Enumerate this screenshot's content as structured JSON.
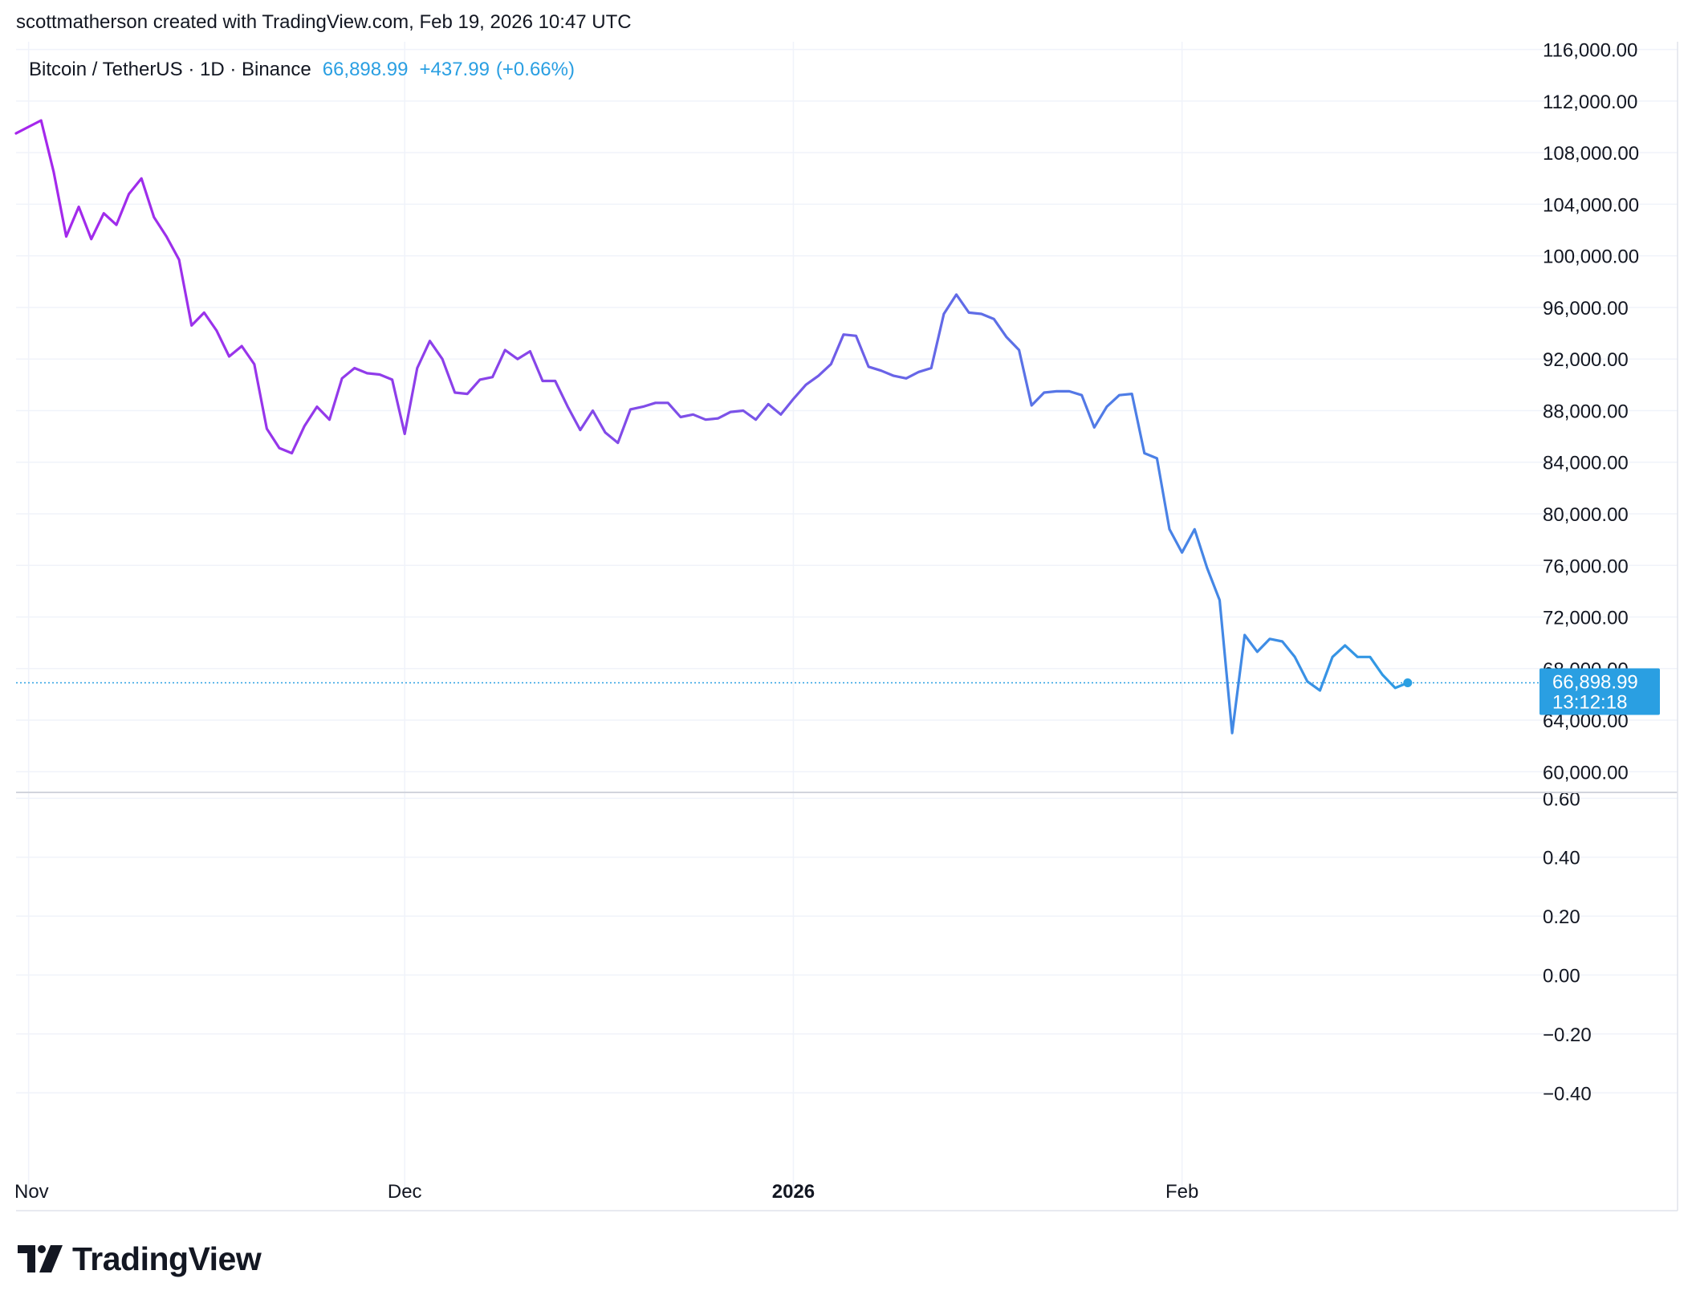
{
  "header": {
    "attribution": "scottmatherson created with TradingView.com, Feb 19, 2026 10:47 UTC"
  },
  "symbol": {
    "name": "Bitcoin / TetherUS · 1D · Binance",
    "price": "66,898.99",
    "change": "+437.99",
    "change_pct": "(+0.66%)"
  },
  "last_price_label": {
    "price": "66,898.99",
    "countdown": "13:12:18"
  },
  "logo": {
    "text": "TradingView"
  },
  "colors": {
    "line_start": "#a626ec",
    "line_mid": "#7b52e8",
    "line_end": "#2aa0e4",
    "accent": "#2a9fe2",
    "text": "#131722",
    "grid": "#f0f3fa"
  },
  "chart_data": {
    "type": "line",
    "title": "Bitcoin / TetherUS · 1D · Binance",
    "x_tick_labels": [
      {
        "label": "Nov",
        "date": "2025-11-01",
        "bold": false
      },
      {
        "label": "Dec",
        "date": "2025-12-01",
        "bold": false
      },
      {
        "label": "2026",
        "date": "2026-01-01",
        "bold": true
      },
      {
        "label": "Feb",
        "date": "2026-02-01",
        "bold": false
      }
    ],
    "xlim": [
      "2025-10-31",
      "2026-03-01"
    ],
    "ylim": [
      58400,
      116600
    ],
    "y_ticks": [
      60000,
      64000,
      68000,
      72000,
      76000,
      80000,
      84000,
      88000,
      92000,
      96000,
      100000,
      104000,
      108000,
      112000,
      116000
    ],
    "y_tick_labels": [
      "60,000.00",
      "64,000.00",
      "68,000.00",
      "72,000.00",
      "76,000.00",
      "80,000.00",
      "84,000.00",
      "88,000.00",
      "92,000.00",
      "96,000.00",
      "100,000.00",
      "104,000.00",
      "108,000.00",
      "112,000.00",
      "116,000.00"
    ],
    "last_value": 66898.99,
    "series": [
      {
        "start_date": "2025-10-31",
        "interval": "1D",
        "values": [
          109500,
          110000,
          110500,
          106500,
          101500,
          103800,
          101300,
          103300,
          102400,
          104800,
          106000,
          103000,
          101500,
          99700,
          94600,
          95600,
          94200,
          92200,
          93000,
          91600,
          86600,
          85100,
          84700,
          86800,
          88300,
          87300,
          90500,
          91300,
          90900,
          90800,
          90400,
          86200,
          91300,
          93400,
          92000,
          89400,
          89300,
          90400,
          90600,
          92700,
          92000,
          92600,
          90300,
          90300,
          88300,
          86500,
          88000,
          86300,
          85500,
          88100,
          88300,
          88600,
          88600,
          87500,
          87700,
          87300,
          87400,
          87900,
          88000,
          87300,
          88500,
          87700,
          88900,
          90000,
          90700,
          91600,
          93900,
          93800,
          91400,
          91100,
          90700,
          90500,
          91000,
          91300,
          95500,
          97000,
          95600,
          95500,
          95100,
          93700,
          92700,
          88400,
          89400,
          89500,
          89500,
          89200,
          86700,
          88300,
          89200,
          89300,
          84700,
          84300,
          78800,
          77000,
          78800,
          75800,
          73300,
          63000,
          70600,
          69300,
          70300,
          70100,
          68900,
          67000,
          66300,
          68900,
          69800,
          68900,
          68900,
          67500,
          66500,
          66899
        ]
      }
    ],
    "lower_pane": {
      "ylim": [
        -0.62,
        0.62
      ],
      "y_ticks": [
        0.6,
        0.4,
        0.2,
        0.0,
        -0.2,
        -0.4
      ],
      "y_tick_labels": [
        "0.60",
        "0.40",
        "0.20",
        "0.00",
        "−0.20",
        "−0.40"
      ]
    }
  }
}
